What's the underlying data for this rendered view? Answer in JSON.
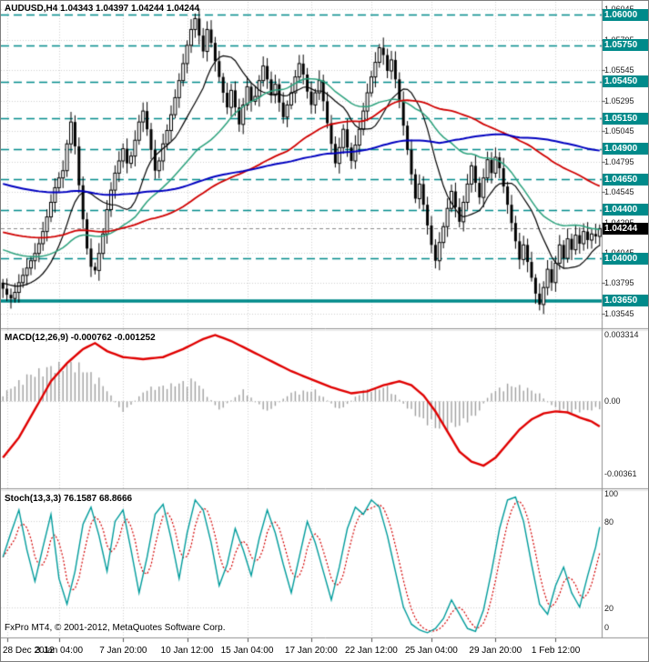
{
  "header": {
    "symbol_line": "AUDUSD,H4 1.04343 1.04397 1.04244 1.04244"
  },
  "footer": {
    "copyright": "FxPro MT4, © 2001-2012, MetaQuotes Software Corp."
  },
  "colors": {
    "background": "#ffffff",
    "grid": "#cfcfcf",
    "level_teal": "#008a8a",
    "candle": "#000000",
    "macd_histogram": "#a0a0a0",
    "macd_signal": "#e00000",
    "stoch_main": "#009c9c",
    "stoch_signal": "#d40000",
    "current_badge_bg": "#000000"
  },
  "price_axis": {
    "ticks": [
      {
        "label": "1.06045",
        "value": 1.06045
      },
      {
        "label": "1.05795",
        "value": 1.05795
      },
      {
        "label": "1.05545",
        "value": 1.05545
      },
      {
        "label": "1.05295",
        "value": 1.05295
      },
      {
        "label": "1.05045",
        "value": 1.05045
      },
      {
        "label": "1.04795",
        "value": 1.04795
      },
      {
        "label": "1.04545",
        "value": 1.04545
      },
      {
        "label": "1.04295",
        "value": 1.04295
      },
      {
        "label": "1.04045",
        "value": 1.04045
      },
      {
        "label": "1.03795",
        "value": 1.03795
      },
      {
        "label": "1.03545",
        "value": 1.03545
      }
    ],
    "levels": [
      {
        "label": "1.06000",
        "value": 1.06,
        "style": "dashed"
      },
      {
        "label": "1.05750",
        "value": 1.0575,
        "style": "dashed"
      },
      {
        "label": "1.05450",
        "value": 1.0545,
        "style": "dashed"
      },
      {
        "label": "1.05150",
        "value": 1.0515,
        "style": "dashed"
      },
      {
        "label": "1.04900",
        "value": 1.049,
        "style": "dashed"
      },
      {
        "label": "1.04650",
        "value": 1.0465,
        "style": "dashed"
      },
      {
        "label": "1.04400",
        "value": 1.044,
        "style": "dashed"
      },
      {
        "label": "1.04000",
        "value": 1.04,
        "style": "dashed"
      },
      {
        "label": "1.03650",
        "value": 1.0365,
        "style": "solid-thick"
      }
    ],
    "current": {
      "label": "1.04244",
      "value": 1.04244
    }
  },
  "time_axis": {
    "labels": [
      {
        "label": "28 Dec 2012",
        "index": 1
      },
      {
        "label": "3 Jan 04:00",
        "index": 14
      },
      {
        "label": "7 Jan 20:00",
        "index": 30
      },
      {
        "label": "10 Jan 12:00",
        "index": 46
      },
      {
        "label": "15 Jan 04:00",
        "index": 61
      },
      {
        "label": "17 Jan 20:00",
        "index": 77
      },
      {
        "label": "22 Jan 12:00",
        "index": 92
      },
      {
        "label": "25 Jan 04:00",
        "index": 107
      },
      {
        "label": "29 Jan 20:00",
        "index": 123
      },
      {
        "label": "1 Feb 12:00",
        "index": 138
      }
    ]
  },
  "panels": {
    "macd": {
      "title": "MACD(12,26,9) -0.000762 -0.001252",
      "scale": [
        {
          "label": "0.003314",
          "value": 0.003314
        },
        {
          "label": "0.00",
          "value": 0
        },
        {
          "label": "-0.00361",
          "value": -0.00361
        }
      ]
    },
    "stoch": {
      "title": "Stoch(13,3,3) 76.1587 68.8666",
      "scale": [
        {
          "label": "100",
          "value": 100
        },
        {
          "label": "80",
          "value": 80
        },
        {
          "label": "20",
          "value": 20
        },
        {
          "label": "0",
          "value": 0
        }
      ]
    }
  },
  "chart_data": {
    "type": "candlestick",
    "symbol": "AUDUSD",
    "timeframe": "H4",
    "ohlc_current": {
      "open": 1.04343,
      "high": 1.04397,
      "low": 1.04244,
      "close": 1.04244
    },
    "price_range": [
      1.0344,
      1.061
    ],
    "first_open": 1.038,
    "closes": [
      1.0375,
      1.037,
      1.0367,
      1.0372,
      1.038,
      1.0386,
      1.0392,
      1.0398,
      1.0404,
      1.0412,
      1.0422,
      1.0434,
      1.0446,
      1.0458,
      1.0466,
      1.0472,
      1.0494,
      1.0512,
      1.0492,
      1.046,
      1.0432,
      1.0408,
      1.0393,
      1.039,
      1.0404,
      1.042,
      1.044,
      1.0456,
      1.047,
      1.048,
      1.049,
      1.0478,
      1.0484,
      1.0497,
      1.0512,
      1.0521,
      1.0506,
      1.0489,
      1.0472,
      1.048,
      1.0494,
      1.0505,
      1.0518,
      1.0532,
      1.0546,
      1.056,
      1.0575,
      1.0588,
      1.0597,
      1.0583,
      1.057,
      1.0588,
      1.0577,
      1.0562,
      1.0549,
      1.0536,
      1.0524,
      1.0538,
      1.0524,
      1.051,
      1.0526,
      1.0541,
      1.0529,
      1.0533,
      1.0546,
      1.0558,
      1.0547,
      1.0534,
      1.0543,
      1.0528,
      1.0516,
      1.0526,
      1.0536,
      1.0549,
      1.056,
      1.0551,
      1.0537,
      1.0526,
      1.0536,
      1.0546,
      1.0529,
      1.0511,
      1.0494,
      1.0478,
      1.0491,
      1.0506,
      1.0491,
      1.048,
      1.0493,
      1.0506,
      1.0521,
      1.0536,
      1.0549,
      1.0561,
      1.0573,
      1.0567,
      1.0554,
      1.0563,
      1.0547,
      1.0529,
      1.0509,
      1.0489,
      1.0469,
      1.0449,
      1.0461,
      1.0444,
      1.0427,
      1.0411,
      1.0398,
      1.0413,
      1.0426,
      1.0441,
      1.0455,
      1.0442,
      1.043,
      1.0446,
      1.0461,
      1.0476,
      1.0462,
      1.045,
      1.0466,
      1.0481,
      1.047,
      1.0483,
      1.0474,
      1.0459,
      1.0444,
      1.0429,
      1.0414,
      1.0399,
      1.0411,
      1.0397,
      1.0384,
      1.0371,
      1.0362,
      1.0376,
      1.0391,
      1.038,
      1.0396,
      1.0411,
      1.04,
      1.0416,
      1.0407,
      1.0419,
      1.0412,
      1.0422,
      1.0415,
      1.042,
      1.0418,
      1.04244
    ],
    "moving_averages": [
      {
        "name": "ma-fast",
        "period": 13,
        "color": "#000000",
        "width": 1.2,
        "seed": 1.038
      },
      {
        "name": "ma-mid",
        "period": 34,
        "color": "#2aa17c",
        "width": 1.5,
        "seed": 1.0408
      },
      {
        "name": "ma-slow",
        "period": 72,
        "color": "#d00000",
        "width": 1.8,
        "seed": 1.0422
      },
      {
        "name": "ma-slowest",
        "period": 110,
        "color": "#0000c0",
        "width": 2.0,
        "seed": 1.0462
      }
    ],
    "levels_dashed": [
      1.06,
      1.0575,
      1.0545,
      1.0515,
      1.049,
      1.0465,
      1.044,
      1.04
    ],
    "level_solid_thick": 1.0365,
    "macd": {
      "params": "12,26,9",
      "value_main": -0.000762,
      "value_signal": -0.001252,
      "range": [
        -0.0041,
        0.0035
      ],
      "signal_line_keypoints": [
        [
          0,
          -0.0028
        ],
        [
          4,
          -0.0018
        ],
        [
          8,
          -0.0004
        ],
        [
          12,
          0.001
        ],
        [
          16,
          0.0019
        ],
        [
          20,
          0.0026
        ],
        [
          23,
          0.0029
        ],
        [
          26,
          0.0025
        ],
        [
          30,
          0.0022
        ],
        [
          35,
          0.0021
        ],
        [
          40,
          0.0022
        ],
        [
          45,
          0.0026
        ],
        [
          50,
          0.0031
        ],
        [
          53,
          0.0033
        ],
        [
          57,
          0.003
        ],
        [
          62,
          0.0025
        ],
        [
          67,
          0.002
        ],
        [
          72,
          0.0015
        ],
        [
          77,
          0.0011
        ],
        [
          82,
          0.0007
        ],
        [
          87,
          0.0004
        ],
        [
          91,
          0.0005
        ],
        [
          95,
          0.0008
        ],
        [
          99,
          0.001
        ],
        [
          102,
          0.0008
        ],
        [
          105,
          0.0003
        ],
        [
          108,
          -0.0005
        ],
        [
          111,
          -0.0015
        ],
        [
          114,
          -0.0025
        ],
        [
          117,
          -0.003
        ],
        [
          120,
          -0.0032
        ],
        [
          123,
          -0.0028
        ],
        [
          126,
          -0.0021
        ],
        [
          129,
          -0.0014
        ],
        [
          132,
          -0.0009
        ],
        [
          135,
          -0.0006
        ],
        [
          138,
          -0.0005
        ],
        [
          141,
          -0.00055
        ],
        [
          144,
          -0.0008
        ],
        [
          147,
          -0.001
        ],
        [
          149,
          -0.00125
        ]
      ],
      "histogram_keypoints": [
        [
          0,
          0.0004
        ],
        [
          6,
          0.0014
        ],
        [
          12,
          0.0019
        ],
        [
          18,
          0.0021
        ],
        [
          24,
          0.0012
        ],
        [
          30,
          -0.0006
        ],
        [
          36,
          0.0007
        ],
        [
          42,
          0.0009
        ],
        [
          48,
          0.0012
        ],
        [
          54,
          -0.0005
        ],
        [
          60,
          0.0006
        ],
        [
          66,
          -0.0006
        ],
        [
          72,
          0.0005
        ],
        [
          78,
          0.0006
        ],
        [
          84,
          -0.0005
        ],
        [
          90,
          0.0006
        ],
        [
          96,
          0.0008
        ],
        [
          102,
          -0.0006
        ],
        [
          106,
          -0.0012
        ],
        [
          110,
          -0.0016
        ],
        [
          114,
          -0.0013
        ],
        [
          118,
          -0.0008
        ],
        [
          122,
          0.0005
        ],
        [
          126,
          0.0009
        ],
        [
          130,
          0.0008
        ],
        [
          134,
          0.0004
        ],
        [
          138,
          -0.0004
        ],
        [
          142,
          -0.0006
        ],
        [
          146,
          -0.0005
        ],
        [
          149,
          -0.0004
        ]
      ]
    },
    "stochastic": {
      "params": "13,3,3",
      "value_main": 76.1587,
      "value_signal": 68.8666,
      "range": [
        0,
        100
      ],
      "main_line_keypoints": [
        [
          0,
          55
        ],
        [
          2,
          72
        ],
        [
          4,
          88
        ],
        [
          6,
          60
        ],
        [
          8,
          38
        ],
        [
          10,
          62
        ],
        [
          12,
          85
        ],
        [
          14,
          40
        ],
        [
          16,
          22
        ],
        [
          18,
          45
        ],
        [
          20,
          78
        ],
        [
          22,
          90
        ],
        [
          24,
          70
        ],
        [
          26,
          45
        ],
        [
          28,
          80
        ],
        [
          30,
          88
        ],
        [
          32,
          60
        ],
        [
          34,
          30
        ],
        [
          36,
          55
        ],
        [
          38,
          85
        ],
        [
          40,
          92
        ],
        [
          42,
          68
        ],
        [
          44,
          40
        ],
        [
          46,
          72
        ],
        [
          48,
          95
        ],
        [
          50,
          88
        ],
        [
          52,
          65
        ],
        [
          54,
          35
        ],
        [
          56,
          50
        ],
        [
          58,
          75
        ],
        [
          60,
          60
        ],
        [
          62,
          42
        ],
        [
          64,
          68
        ],
        [
          66,
          88
        ],
        [
          68,
          72
        ],
        [
          70,
          50
        ],
        [
          72,
          30
        ],
        [
          74,
          55
        ],
        [
          76,
          80
        ],
        [
          78,
          65
        ],
        [
          80,
          45
        ],
        [
          82,
          25
        ],
        [
          84,
          48
        ],
        [
          86,
          75
        ],
        [
          88,
          90
        ],
        [
          90,
          85
        ],
        [
          92,
          95
        ],
        [
          94,
          90
        ],
        [
          96,
          70
        ],
        [
          98,
          45
        ],
        [
          100,
          20
        ],
        [
          102,
          8
        ],
        [
          104,
          4
        ],
        [
          106,
          2
        ],
        [
          108,
          5
        ],
        [
          110,
          12
        ],
        [
          112,
          25
        ],
        [
          114,
          15
        ],
        [
          116,
          5
        ],
        [
          118,
          3
        ],
        [
          120,
          18
        ],
        [
          122,
          45
        ],
        [
          124,
          75
        ],
        [
          126,
          95
        ],
        [
          128,
          97
        ],
        [
          130,
          80
        ],
        [
          132,
          50
        ],
        [
          134,
          22
        ],
        [
          136,
          15
        ],
        [
          138,
          35
        ],
        [
          140,
          48
        ],
        [
          142,
          30
        ],
        [
          144,
          20
        ],
        [
          146,
          42
        ],
        [
          148,
          62
        ],
        [
          149,
          76
        ]
      ]
    }
  }
}
